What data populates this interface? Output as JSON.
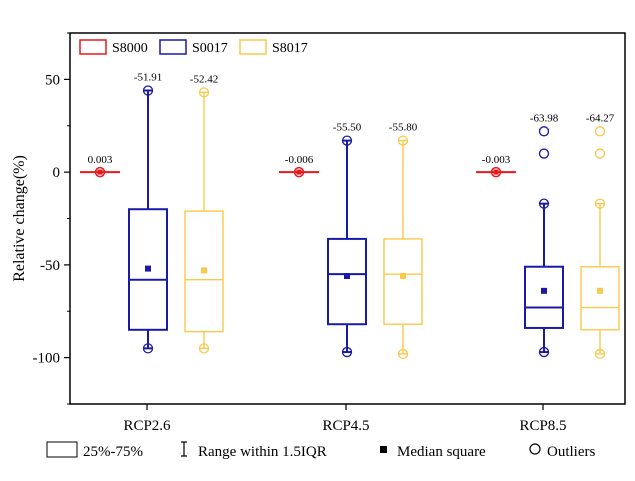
{
  "chart_data": {
    "type": "box",
    "ylabel": "Relative change(%)",
    "xlabel": "",
    "ylim": [
      -125,
      75
    ],
    "yticks": [
      50,
      0,
      -50,
      -100
    ],
    "categories": [
      "RCP2.6",
      "RCP4.5",
      "RCP8.5"
    ],
    "legend": {
      "placement": "top-left"
    },
    "series": [
      {
        "name": "S8000",
        "color": "#e8191c",
        "boxes": [
          {
            "category": "RCP2.6",
            "q1": 0,
            "median": 0,
            "q3": 0,
            "whisker_low": 0,
            "whisker_high": 0,
            "mean": 0,
            "label": "0.003",
            "outliers": []
          },
          {
            "category": "RCP4.5",
            "q1": 0,
            "median": 0,
            "q3": 0,
            "whisker_low": 0,
            "whisker_high": 0,
            "mean": 0,
            "label": "-0.006",
            "outliers": []
          },
          {
            "category": "RCP8.5",
            "q1": 0,
            "median": 0,
            "q3": 0,
            "whisker_low": 0,
            "whisker_high": 0,
            "mean": 0,
            "label": "-0.003",
            "outliers": []
          }
        ]
      },
      {
        "name": "S0017",
        "color": "#1a1aa8",
        "boxes": [
          {
            "category": "RCP2.6",
            "q1": -85,
            "median": -58,
            "q3": -20,
            "whisker_low": -95,
            "whisker_high": 44,
            "mean": -52,
            "label": "-51.91",
            "outliers": []
          },
          {
            "category": "RCP4.5",
            "q1": -82,
            "median": -55,
            "q3": -36,
            "whisker_low": -97,
            "whisker_high": 17,
            "mean": -56,
            "label": "-55.50",
            "outliers": []
          },
          {
            "category": "RCP8.5",
            "q1": -84,
            "median": -73,
            "q3": -51,
            "whisker_low": -97,
            "whisker_high": -17,
            "mean": -64,
            "label": "-63.98",
            "outliers": [
              22,
              10
            ]
          }
        ]
      },
      {
        "name": "S8017",
        "color": "#fbc94a",
        "boxes": [
          {
            "category": "RCP2.6",
            "q1": -86,
            "median": -58,
            "q3": -21,
            "whisker_low": -95,
            "whisker_high": 43,
            "mean": -53,
            "label": "-52.42",
            "outliers": []
          },
          {
            "category": "RCP4.5",
            "q1": -82,
            "median": -55,
            "q3": -36,
            "whisker_low": -98,
            "whisker_high": 17,
            "mean": -56,
            "label": "-55.80",
            "outliers": []
          },
          {
            "category": "RCP8.5",
            "q1": -85,
            "median": -73,
            "q3": -51,
            "whisker_low": -98,
            "whisker_high": -17,
            "mean": -64,
            "label": "-64.27",
            "outliers": [
              22,
              10
            ]
          }
        ]
      }
    ],
    "bottom_legend": [
      {
        "symbol": "box",
        "label": "25%-75%"
      },
      {
        "symbol": "whisker",
        "label": "Range within 1.5IQR"
      },
      {
        "symbol": "median-square",
        "label": "Median square"
      },
      {
        "symbol": "circle",
        "label": "Outliers"
      }
    ]
  }
}
